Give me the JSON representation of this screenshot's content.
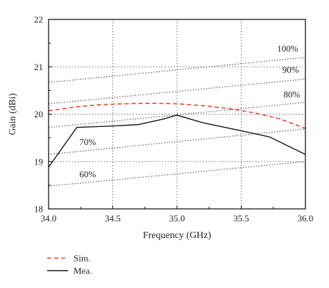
{
  "chart_data": {
    "type": "line",
    "xlabel": "Frequency (GHz)",
    "ylabel": "Gain (dBi)",
    "xlim": [
      34.0,
      36.0
    ],
    "ylim": [
      18,
      22
    ],
    "x_ticks": [
      "34.0",
      "34.5",
      "35.0",
      "35.5",
      "36.0"
    ],
    "y_ticks": [
      "18",
      "19",
      "20",
      "21",
      "22"
    ],
    "grid": "dotted",
    "legend_position": "bottom-left",
    "series": [
      {
        "name": "Sim.",
        "color": "#e8432b",
        "style": "dashed",
        "x": [
          34.0,
          34.2,
          34.4,
          34.6,
          34.8,
          35.0,
          35.2,
          35.4,
          35.6,
          35.8,
          36.0
        ],
        "y": [
          20.07,
          20.15,
          20.2,
          20.22,
          20.23,
          20.22,
          20.18,
          20.12,
          20.03,
          19.9,
          19.7
        ]
      },
      {
        "name": "Mea.",
        "color": "#111111",
        "style": "solid",
        "x": [
          34.0,
          34.22,
          34.5,
          34.7,
          34.9,
          35.0,
          35.2,
          35.5,
          35.72,
          36.0
        ],
        "y": [
          18.88,
          19.72,
          19.75,
          19.78,
          19.9,
          19.98,
          19.82,
          19.65,
          19.52,
          19.15
        ]
      }
    ],
    "efficiency_lines": [
      {
        "label": "100%",
        "y_start": 20.67,
        "y_end": 21.2,
        "label_x": 35.78,
        "label_y": 21.32
      },
      {
        "label": "90%",
        "y_start": 20.22,
        "y_end": 20.74,
        "label_x": 35.82,
        "label_y": 20.87
      },
      {
        "label": "80%",
        "y_start": 19.72,
        "y_end": 20.25,
        "label_x": 35.83,
        "label_y": 20.35
      },
      {
        "label": "70%",
        "y_start": 19.15,
        "y_end": 19.69,
        "label_x": 34.24,
        "label_y": 19.35
      },
      {
        "label": "60%",
        "y_start": 18.48,
        "y_end": 19.0,
        "label_x": 34.24,
        "label_y": 18.67
      }
    ]
  }
}
